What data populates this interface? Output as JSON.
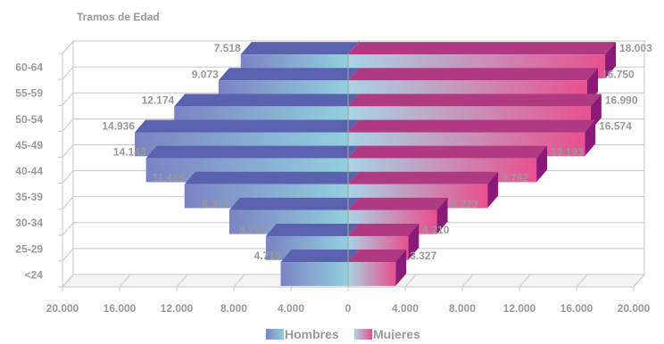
{
  "chart_data": {
    "type": "bar",
    "orientation": "horizontal",
    "subtype": "population-pyramid",
    "title": "",
    "ylabel": "Tramos de Edad",
    "xlabel": "",
    "categories": [
      "60-64",
      "55-59",
      "50-54",
      "45-49",
      "40-44",
      "35-39",
      "30-34",
      "25-29",
      "<24"
    ],
    "series": [
      {
        "name": "Hombres",
        "side": "left",
        "values": [
          7518,
          9073,
          12174,
          14936,
          14148,
          11455,
          8317,
          5757,
          4714
        ],
        "labels": [
          "7.518",
          "9.073",
          "12.174",
          "14.936",
          "14.148",
          "11.455",
          "8.317",
          "5.757",
          "4.714"
        ]
      },
      {
        "name": "Mujeres",
        "side": "right",
        "values": [
          18003,
          16750,
          16990,
          16574,
          13193,
          9762,
          6223,
          4210,
          3327
        ],
        "labels": [
          "18.003",
          "16.750",
          "16.990",
          "16.574",
          "13.193",
          "9.762",
          "6.223",
          "4.210",
          "3.327"
        ]
      }
    ],
    "xlim": [
      -20000,
      20000
    ],
    "xticks": [
      "20.000",
      "16.000",
      "12.000",
      "8.000",
      "4.000",
      "0",
      "4.000",
      "8.000",
      "12.000",
      "16.000",
      "20.000"
    ],
    "grid": true,
    "legend": "bottom",
    "style": "3d",
    "colors": {
      "hombres_dark": "#7b83c4",
      "hombres_light": "#92d0de",
      "hombres_top": "#5a62b0",
      "mujeres_light": "#a9d4e4",
      "mujeres_dark": "#e8508e",
      "mujeres_top": "#b03a82",
      "mujeres_side": "#8a1a7a",
      "grid": "#c8c8c8",
      "text": "#999999"
    }
  }
}
